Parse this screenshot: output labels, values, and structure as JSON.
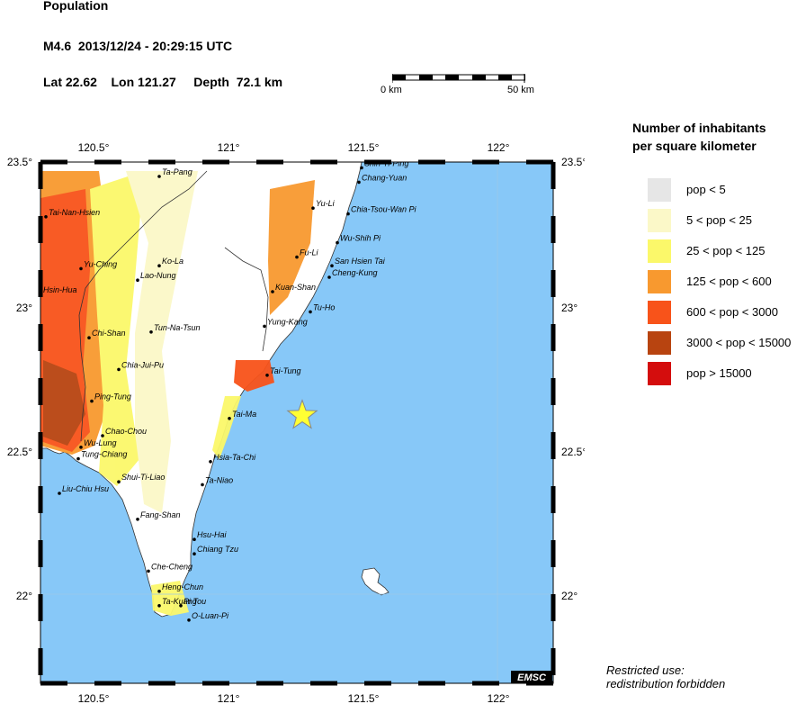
{
  "header": {
    "title": "Population",
    "event": "M4.6  2013/12/24 - 20:29:15 UTC",
    "location": "Lat 22.62    Lon 121.27     Depth  72.1 km"
  },
  "scale_bar": {
    "start_label": "0 km",
    "end_label": "50 km"
  },
  "map": {
    "lon_ticks": [
      "120.5°",
      "121°",
      "121.5°",
      "122°"
    ],
    "lat_ticks": [
      "23.5°",
      "23°",
      "22.5°",
      "22°"
    ],
    "epicenter": {
      "lat": 22.62,
      "lon": 121.27
    },
    "colors": {
      "sea": "#87c8f8",
      "land": "#ffffff",
      "epicenter": "#ffff33"
    },
    "cities": [
      {
        "name": "Ta-Pang",
        "lat": 23.45,
        "lon": 120.74
      },
      {
        "name": "Tai-Nan-Hsien",
        "lat": 23.31,
        "lon": 120.32
      },
      {
        "name": "Yu-Ching",
        "lat": 23.13,
        "lon": 120.45
      },
      {
        "name": "Ko-La",
        "lat": 23.14,
        "lon": 120.74
      },
      {
        "name": "Lao-Nung",
        "lat": 23.09,
        "lon": 120.66
      },
      {
        "name": "Hsin-Hua",
        "lat": 23.04,
        "lon": 120.3
      },
      {
        "name": "Tun-Na-Tsun",
        "lat": 22.91,
        "lon": 120.71
      },
      {
        "name": "Chi-Shan",
        "lat": 22.89,
        "lon": 120.48
      },
      {
        "name": "Chia-Jui-Pu",
        "lat": 22.78,
        "lon": 120.59
      },
      {
        "name": "Ping-Tung",
        "lat": 22.67,
        "lon": 120.49
      },
      {
        "name": "Chao-Chou",
        "lat": 22.55,
        "lon": 120.53
      },
      {
        "name": "Wu-Lung",
        "lat": 22.51,
        "lon": 120.45
      },
      {
        "name": "Tung-Chiang",
        "lat": 22.47,
        "lon": 120.44
      },
      {
        "name": "Shui-Ti-Liao",
        "lat": 22.39,
        "lon": 120.59
      },
      {
        "name": "Liu-Chiu Hsu",
        "lat": 22.35,
        "lon": 120.37
      },
      {
        "name": "Fang-Shan",
        "lat": 22.26,
        "lon": 120.66
      },
      {
        "name": "Hsu-Hai",
        "lat": 22.19,
        "lon": 120.87
      },
      {
        "name": "Chiang Tzu",
        "lat": 22.14,
        "lon": 120.87
      },
      {
        "name": "Che-Cheng",
        "lat": 22.08,
        "lon": 120.7
      },
      {
        "name": "Heng-Chun",
        "lat": 22.01,
        "lon": 120.74
      },
      {
        "name": "Ta-Kuang",
        "lat": 21.96,
        "lon": 120.74
      },
      {
        "name": "Pi Tou",
        "lat": 21.96,
        "lon": 120.82
      },
      {
        "name": "O-Luan-Pi",
        "lat": 21.91,
        "lon": 120.85
      },
      {
        "name": "Shih-Ti-Ping",
        "lat": 23.48,
        "lon": 121.49
      },
      {
        "name": "Chang-Yuan",
        "lat": 23.43,
        "lon": 121.48
      },
      {
        "name": "Yu-Li",
        "lat": 23.34,
        "lon": 121.31
      },
      {
        "name": "Chia-Tsou-Wan Pi",
        "lat": 23.32,
        "lon": 121.44
      },
      {
        "name": "Wu-Shih Pi",
        "lat": 23.22,
        "lon": 121.4
      },
      {
        "name": "Fu-Li",
        "lat": 23.17,
        "lon": 121.25
      },
      {
        "name": "San Hsien Tai",
        "lat": 23.14,
        "lon": 121.38
      },
      {
        "name": "Cheng-Kung",
        "lat": 23.1,
        "lon": 121.37
      },
      {
        "name": "Kuan-Shan",
        "lat": 23.05,
        "lon": 121.16
      },
      {
        "name": "Tu-Ho",
        "lat": 22.98,
        "lon": 121.3
      },
      {
        "name": "Yung-Kang",
        "lat": 22.93,
        "lon": 121.13
      },
      {
        "name": "Tai-Tung",
        "lat": 22.76,
        "lon": 121.14
      },
      {
        "name": "Tai-Ma",
        "lat": 22.61,
        "lon": 121.0
      },
      {
        "name": "Hsia-Ta-Chi",
        "lat": 22.46,
        "lon": 120.93
      },
      {
        "name": "Ta-Niao",
        "lat": 22.38,
        "lon": 120.9
      }
    ]
  },
  "legend": {
    "title_line1": "Number of inhabitants",
    "title_line2": "per square kilometer",
    "items": [
      {
        "label": "pop < 5",
        "color": "#e6e6e6"
      },
      {
        "label": "5 < pop < 25",
        "color": "#fbf8c8"
      },
      {
        "label": "25 < pop < 125",
        "color": "#fbf86a"
      },
      {
        "label": "125 < pop < 600",
        "color": "#f8992f"
      },
      {
        "label": "600 < pop < 3000",
        "color": "#f8531a"
      },
      {
        "label": "3000 < pop < 15000",
        "color": "#b84410"
      },
      {
        "label": "pop > 15000",
        "color": "#d40d0d"
      }
    ]
  },
  "badge": "EMSC",
  "restricted": {
    "line1": "Restricted use:",
    "line2": "redistribution forbidden"
  }
}
